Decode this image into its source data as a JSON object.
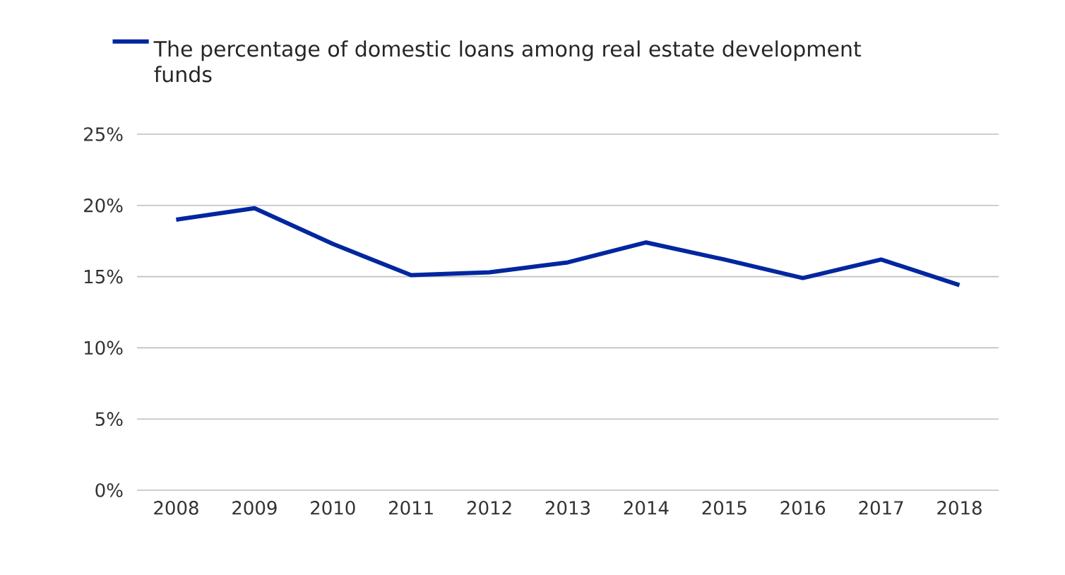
{
  "chart_data": {
    "type": "line",
    "categories": [
      "2008",
      "2009",
      "2010",
      "2011",
      "2012",
      "2013",
      "2014",
      "2015",
      "2016",
      "2017",
      "2018"
    ],
    "series": [
      {
        "name": "The percentage of domestic loans among real estate development funds",
        "color": "#0026a0",
        "values": [
          19.0,
          19.8,
          17.3,
          15.1,
          15.3,
          16.0,
          17.4,
          16.2,
          14.9,
          16.2,
          14.4
        ]
      }
    ],
    "ylim": [
      0,
      25
    ],
    "yticks": [
      {
        "value": 0,
        "label": "0%"
      },
      {
        "value": 5,
        "label": "5%"
      },
      {
        "value": 10,
        "label": "10%"
      },
      {
        "value": 15,
        "label": "15%"
      },
      {
        "value": 20,
        "label": "20%"
      },
      {
        "value": 25,
        "label": "25%"
      }
    ],
    "grid": "y",
    "legend": "top left",
    "marker": "none",
    "line_style": "solid"
  }
}
